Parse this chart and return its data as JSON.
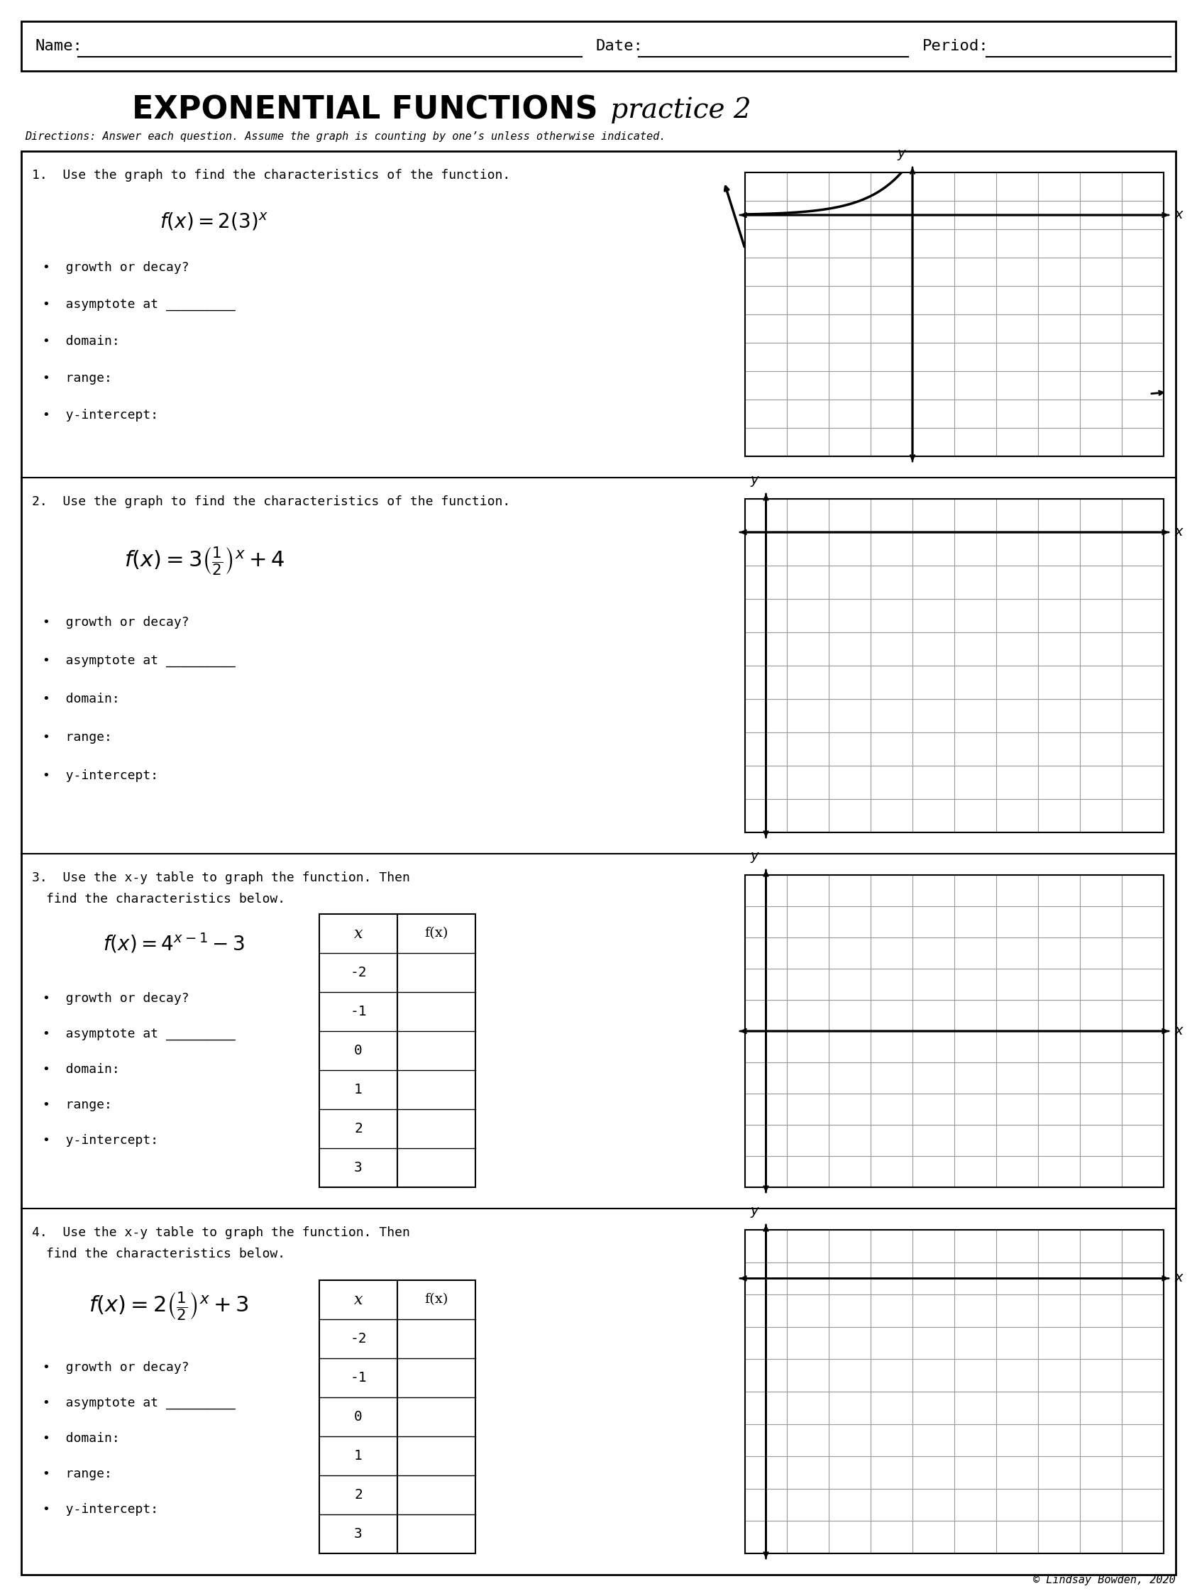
{
  "title_bold": "EXPONENTIAL FUNCTIONS",
  "title_italic": " practice 2",
  "directions": "Directions: Answer each question. Assume the graph is counting by one’s unless otherwise indicated.",
  "header_line1": "Name:",
  "header_line2": "Date:",
  "header_line3": "Period:",
  "q1_number": "1.",
  "q1_text": "Use the graph to find the characteristics of the function.",
  "q1_formula": "$f(x) = 2(3)^x$",
  "q1_bullets": [
    "growth or decay?",
    "asymptote at _________",
    "domain:",
    "range:",
    "y-intercept:"
  ],
  "q2_number": "2.",
  "q2_text": "Use the graph to find the characteristics of the function.",
  "q2_formula": "$f(x) = 3\\left(\\frac{1}{2}\\right)^x + 4$",
  "q2_bullets": [
    "growth or decay?",
    "asymptote at _________",
    "domain:",
    "range:",
    "y-intercept:"
  ],
  "q3_number": "3.",
  "q3_text": "Use the x-y table to graph the function. Then find the characteristics below.",
  "q3_formula": "$f(x) = 4^{x-1} - 3$",
  "q3_bullets": [
    "growth or decay?",
    "asymptote at _________",
    "domain:",
    "range:",
    "y-intercept:"
  ],
  "q3_x_vals": [
    "-2",
    "-1",
    "0",
    "1",
    "2",
    "3"
  ],
  "q4_number": "4.",
  "q4_text": "Use the x-y table to graph the function. Then find the characteristics below.",
  "q4_formula": "$f(x) = 2\\left(\\frac{1}{2}\\right)^x + 3$",
  "q4_bullets": [
    "growth or decay?",
    "asymptote at _________",
    "domain:",
    "range:",
    "y-intercept:"
  ],
  "q4_x_vals": [
    "-2",
    "-1",
    "0",
    "1",
    "2",
    "3"
  ],
  "bg_color": "#ffffff",
  "grid_color": "#999999",
  "border_color": "#000000",
  "text_color": "#000000",
  "copyright": "© Lindsay Bowden, 2020"
}
